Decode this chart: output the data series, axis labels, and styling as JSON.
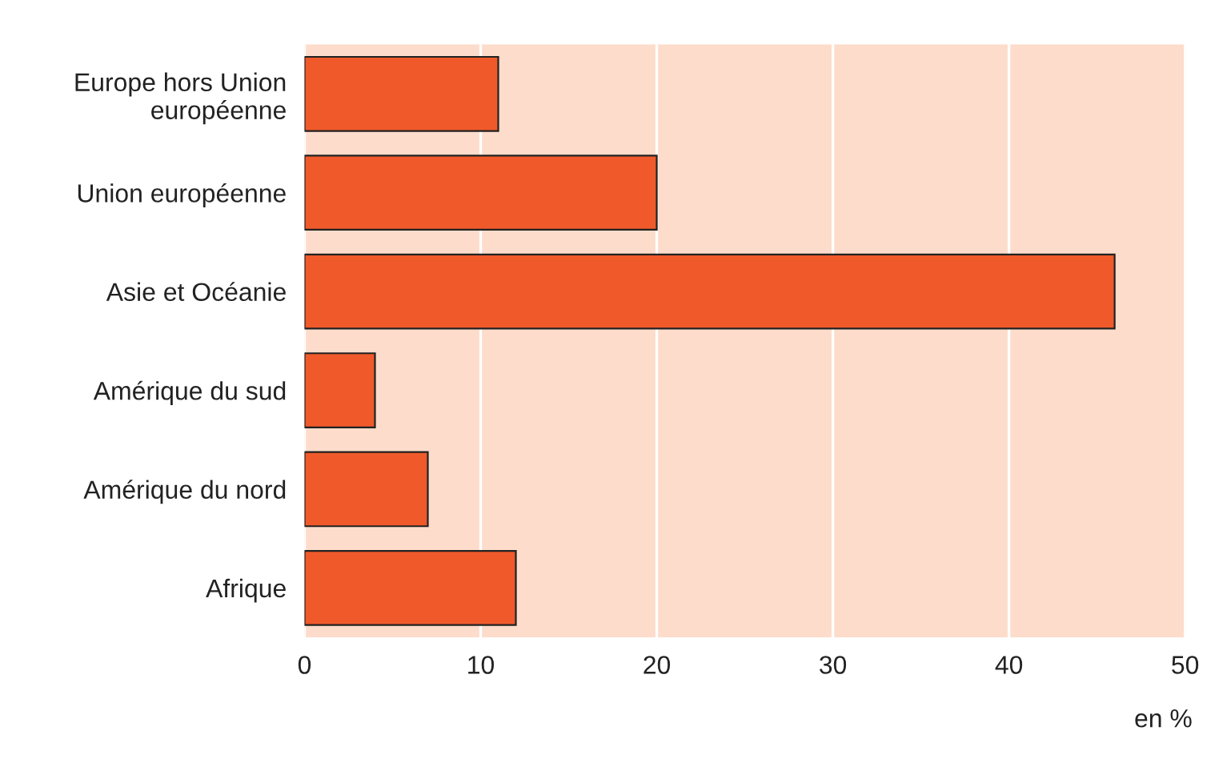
{
  "chart_data": {
    "type": "bar",
    "orientation": "horizontal",
    "categories": [
      "Europe hors Union\neuropéenne",
      "Union européenne",
      "Asie et Océanie",
      "Amérique du sud",
      "Amérique du nord",
      "Afrique"
    ],
    "values": [
      11,
      20,
      46,
      4,
      7,
      12
    ],
    "color": "#f05a2b",
    "xlim": [
      0,
      50
    ],
    "xticks": [
      0,
      10,
      20,
      30,
      40,
      50
    ],
    "grid": "x",
    "annotations": [
      "en %"
    ]
  }
}
